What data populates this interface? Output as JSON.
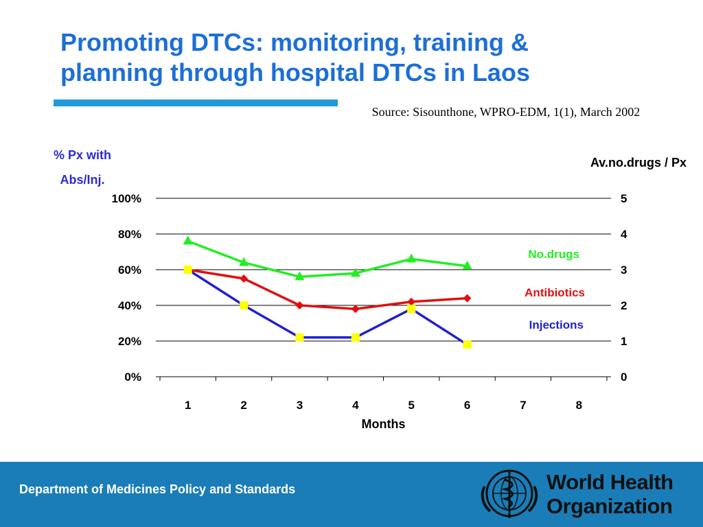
{
  "title": "Promoting DTCs: monitoring, training & planning through hospital DTCs in Laos",
  "source": "Source: Sisounthone, WPRO-EDM, 1(1), March 2002",
  "footer": {
    "department": "Department of Medicines Policy and Standards",
    "org_line1": "World Health",
    "org_line2": "Organization"
  },
  "colors": {
    "title": "#1c6fd6",
    "rule": "#1f9ad6",
    "footer": "#1a7db8",
    "no_drugs": "#22ee22",
    "antibiotics": "#e01010",
    "injections": "#2020d0",
    "injection_marker": "#ffff00"
  },
  "chart_data": {
    "type": "line",
    "x": [
      1,
      2,
      3,
      4,
      5,
      6
    ],
    "x_ticks": [
      "1",
      "2",
      "3",
      "4",
      "5",
      "6",
      "7",
      "8"
    ],
    "xlabel": "Months",
    "ylabel_left": "% Px with Abs/Inj.",
    "ylabel_left_lines": [
      "% Px with",
      "Abs/Inj."
    ],
    "ylabel_right": "Av.no.drugs / Px",
    "ylim_left": [
      0,
      100
    ],
    "ylim_right": [
      0,
      5
    ],
    "y_ticks_left": [
      "100%",
      "80%",
      "60%",
      "40%",
      "20%",
      "0%"
    ],
    "y_ticks_right": [
      "5",
      "4",
      "3",
      "2",
      "1",
      "0"
    ],
    "grid": true,
    "series": [
      {
        "name": "No.drugs",
        "axis": "right",
        "marker": "triangle",
        "color": "#22ee22",
        "values": [
          3.8,
          3.2,
          2.8,
          2.9,
          3.3,
          3.1
        ]
      },
      {
        "name": "Antibiotics",
        "axis": "left",
        "marker": "diamond",
        "color": "#e01010",
        "values": [
          60,
          55,
          40,
          38,
          42,
          44
        ]
      },
      {
        "name": "Injections",
        "axis": "left",
        "marker": "square",
        "color": "#2020d0",
        "marker_color": "#ffff00",
        "values": [
          60,
          40,
          22,
          22,
          38,
          18
        ]
      }
    ]
  }
}
